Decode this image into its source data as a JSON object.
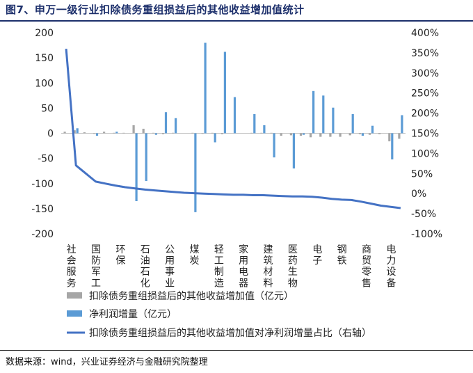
{
  "title": "图7、申万一级行业扣除债务重组损益后的其他收益增加值统计",
  "source": "数据来源：wind，兴业证券经济与金融研究院整理",
  "chart_data": {
    "type": "bar",
    "categories": [
      "社会服务",
      "国防军工",
      "环保",
      "石油石化",
      "公用事业",
      "煤炭",
      "轻工制造",
      "家用电器",
      "建筑材料",
      "医药生物",
      "电子",
      "钢铁",
      "商贸零售",
      "电力设备"
    ],
    "x": [
      "社会服务",
      "社会服务",
      "国防军工",
      "国防军工",
      "国防军工",
      "环保",
      "环保",
      "石油石化",
      "石油石化",
      "公用事业",
      "公用事业",
      "公用事业",
      "煤炭",
      "煤炭",
      "轻工制造",
      "轻工制造",
      "轻工制造",
      "家用电器",
      "家用电器",
      "家用电器",
      "建筑材料",
      "建筑材料",
      "医药生物",
      "医药生物",
      "医药生物",
      "电子",
      "电子",
      "电子",
      "钢铁",
      "钢铁",
      "商贸零售",
      "商贸零售",
      "电力设备",
      "电力设备",
      "电力设备"
    ],
    "series": [
      {
        "name": "扣除债务重组损益后的其他收益增加值（亿元）",
        "color": "#a6a6a6",
        "axis": "left",
        "values": [
          3,
          6,
          2,
          -1,
          3,
          1,
          1,
          16,
          9,
          1,
          -2,
          1,
          0,
          1,
          -1,
          1,
          -2,
          0,
          0,
          1,
          1,
          1,
          -5,
          -4,
          -5,
          -8,
          -7,
          -7,
          -7,
          -4,
          -2,
          -3,
          -2,
          -16,
          -11
        ]
      },
      {
        "name": "净利润增量（亿元）",
        "color": "#5b9bd5",
        "axis": "left",
        "values": [
          0,
          10,
          0,
          -5,
          0,
          3,
          0,
          -135,
          -95,
          -3,
          42,
          30,
          0,
          -157,
          180,
          -18,
          162,
          72,
          0,
          38,
          16,
          -48,
          0,
          -70,
          -3,
          84,
          75,
          51,
          0,
          38,
          -5,
          15,
          0,
          -52,
          36
        ]
      },
      {
        "name": "扣除债务重组损益后的其他收益增加值对净利润增量占比（右轴）",
        "color": "#4472c4",
        "axis": "right",
        "type": "line",
        "values": [
          360,
          70,
          50,
          30,
          25,
          20,
          16,
          13,
          10,
          8,
          6,
          4,
          2,
          1,
          0,
          -1,
          -2,
          -3,
          -3,
          -4,
          -4,
          -5,
          -6,
          -7,
          -7,
          -8,
          -10,
          -13,
          -15,
          -16,
          -20,
          -25,
          -30,
          -33,
          -36
        ]
      }
    ],
    "y_left": {
      "ylim": [
        -200,
        200
      ],
      "ticks": [
        200,
        150,
        100,
        50,
        0,
        -50,
        -100,
        -150,
        -200
      ]
    },
    "y_right": {
      "ylim": [
        -100,
        400
      ],
      "ticks": [
        "400%",
        "350%",
        "300%",
        "250%",
        "200%",
        "150%",
        "100%",
        "50%",
        "0%",
        "-50%",
        "-100%"
      ]
    },
    "legend": "bottom"
  }
}
